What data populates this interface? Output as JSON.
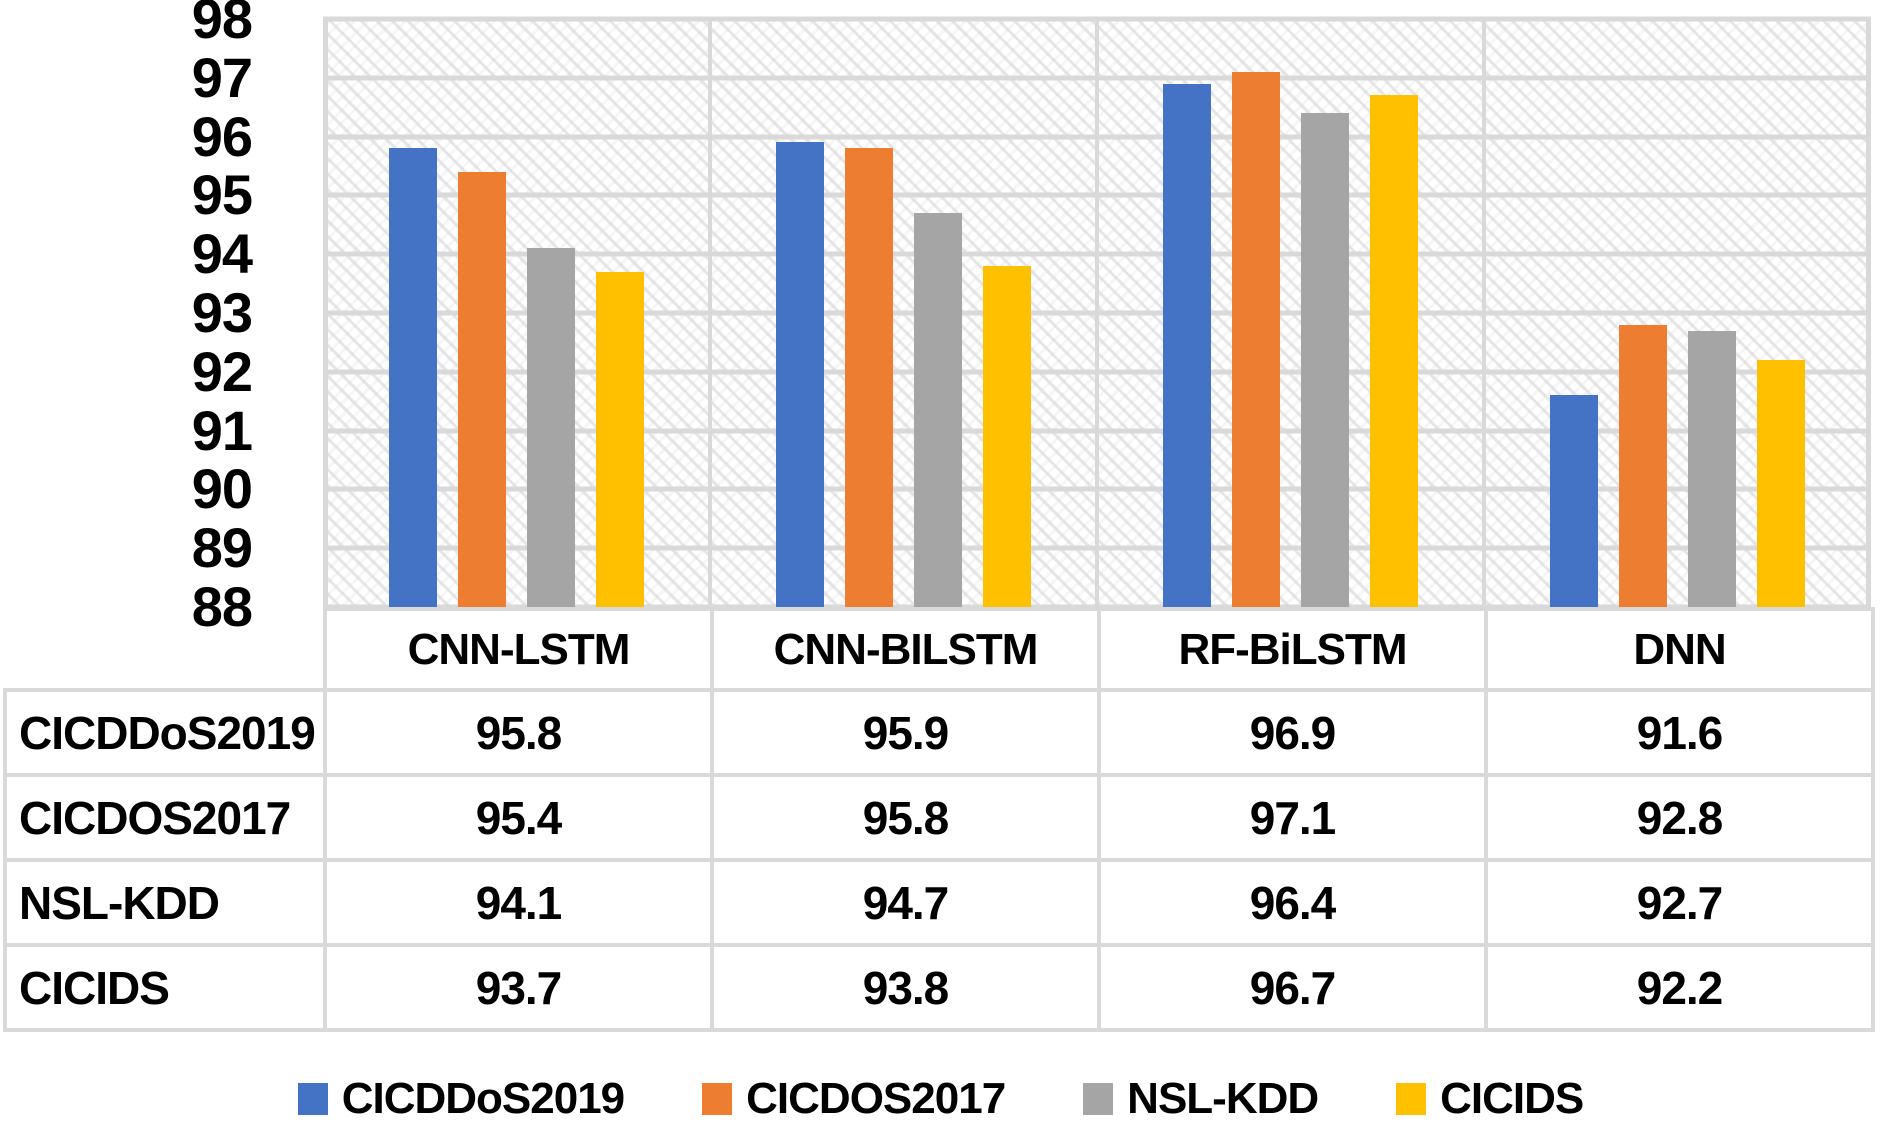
{
  "chart_data": {
    "type": "bar",
    "title": "",
    "xlabel": "",
    "ylabel": "",
    "categories": [
      "CNN-LSTM",
      "CNN-BILSTM",
      "RF-BiLSTM",
      "DNN"
    ],
    "series": [
      {
        "name": "CICDDoS2019",
        "color": "#4472C4",
        "values": [
          95.8,
          95.9,
          96.9,
          91.6
        ]
      },
      {
        "name": "CICDOS2017",
        "color": "#ED7D31",
        "values": [
          95.4,
          95.8,
          97.1,
          92.8
        ]
      },
      {
        "name": "NSL-KDD",
        "color": "#A5A5A5",
        "values": [
          94.1,
          94.7,
          96.4,
          92.7
        ]
      },
      {
        "name": "CICIDS",
        "color": "#FFC000",
        "values": [
          93.7,
          93.8,
          96.7,
          92.2
        ]
      }
    ],
    "ylim": [
      88,
      98
    ],
    "yticks": [
      98,
      97,
      96,
      95,
      94,
      93,
      92,
      91,
      90,
      89,
      88
    ],
    "grid": true,
    "gridline_color": "#D9D9D9",
    "plot_background_pattern": "light-diagonal-hatch",
    "legend_position": "bottom",
    "has_data_table": true
  }
}
